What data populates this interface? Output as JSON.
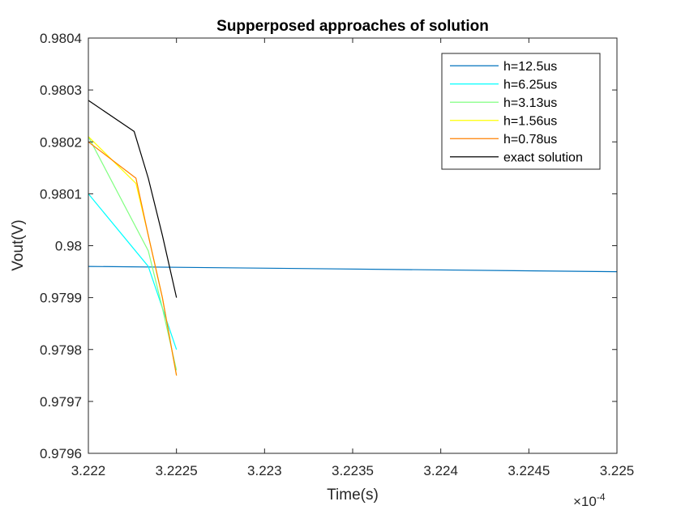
{
  "chart_data": {
    "type": "line",
    "title": "Supperposed approaches of solution",
    "xlabel": "Time(s)",
    "ylabel": "Vout(V)",
    "x_exponent_label": "×10",
    "x_exponent_power": "-4",
    "xlim": [
      3.222,
      3.225
    ],
    "ylim": [
      0.9796,
      0.9804
    ],
    "x_ticks": [
      3.222,
      3.2225,
      3.223,
      3.2235,
      3.224,
      3.2245,
      3.225
    ],
    "x_tick_labels": [
      "3.222",
      "3.2225",
      "3.223",
      "3.2235",
      "3.224",
      "3.2245",
      "3.225"
    ],
    "y_ticks": [
      0.9796,
      0.9797,
      0.9798,
      0.9799,
      0.98,
      0.9801,
      0.9802,
      0.9803,
      0.9804
    ],
    "y_tick_labels": [
      "0.9796",
      "0.9797",
      "0.9798",
      "0.9799",
      "0.98",
      "0.9801",
      "0.9802",
      "0.9803",
      "0.9804"
    ],
    "grid": false,
    "legend_position": "top-right",
    "series": [
      {
        "name": "h=12.5us",
        "color": "#0072BD",
        "x": [
          3.222,
          3.225
        ],
        "values": [
          0.97996,
          0.97995
        ]
      },
      {
        "name": "h=6.25us",
        "color": "#00FFFF",
        "x": [
          3.222,
          3.22234,
          3.2225
        ],
        "values": [
          0.9801,
          0.97996,
          0.9798
        ]
      },
      {
        "name": "h=3.13us",
        "color": "#80FF80",
        "x": [
          3.222,
          3.22234,
          3.22242,
          3.2225
        ],
        "values": [
          0.98021,
          0.97999,
          0.97988,
          0.97976
        ]
      },
      {
        "name": "h=1.56us",
        "color": "#FFFF00",
        "x": [
          3.222,
          3.22227,
          3.22234,
          3.22242,
          3.2225
        ],
        "values": [
          0.98021,
          0.98012,
          0.98002,
          0.9799,
          0.97975
        ]
      },
      {
        "name": "h=0.78us",
        "color": "#FF8000",
        "x": [
          3.222,
          3.22227,
          3.22234,
          3.22242,
          3.2225
        ],
        "values": [
          0.9802,
          0.98013,
          0.98002,
          0.9799,
          0.97975
        ]
      },
      {
        "name": "exact solution",
        "color": "#000000",
        "x": [
          3.222,
          3.22226,
          3.22234,
          3.22242,
          3.2225
        ],
        "values": [
          0.98028,
          0.98022,
          0.98013,
          0.98002,
          0.9799
        ]
      }
    ]
  }
}
